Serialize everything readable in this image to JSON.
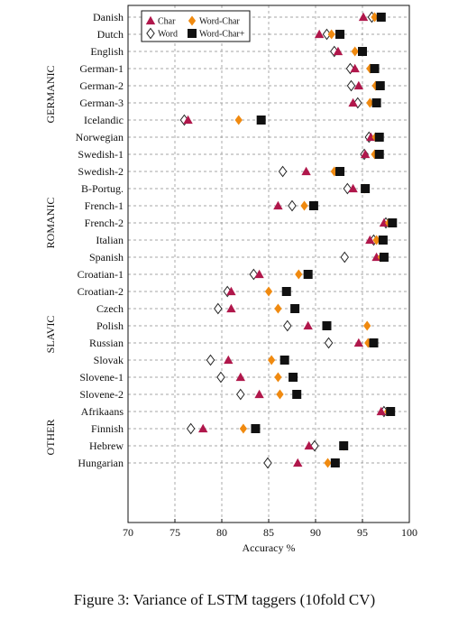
{
  "caption": "Figure 3: Variance of LSTM taggers (10fold CV)",
  "chart_data": {
    "type": "scatter",
    "orientation": "horizontal-categories",
    "xlabel": "Accuracy %",
    "xlim": [
      70,
      100
    ],
    "xticks": [
      70,
      75,
      80,
      85,
      90,
      95,
      100
    ],
    "grid": true,
    "legend_position": "top-left",
    "legend": [
      {
        "key": "char",
        "label": "Char",
        "marker": "triangle",
        "color": "#b0174b"
      },
      {
        "key": "word_char",
        "label": "Word-Char",
        "marker": "diamond",
        "color": "#f08a10"
      },
      {
        "key": "word",
        "label": "Word",
        "marker": "diamond-open",
        "color": "#222222"
      },
      {
        "key": "word_char_plus",
        "label": "Word-Char+",
        "marker": "square",
        "color": "#111111"
      }
    ],
    "groups": [
      {
        "name": "GERMANIC",
        "languages": [
          {
            "name": "Danish",
            "char": 95.1,
            "word_char": 96.3,
            "word": 96.0,
            "word_char_plus": 97.0
          },
          {
            "name": "Dutch",
            "char": 90.4,
            "word_char": 91.7,
            "word": 91.2,
            "word_char_plus": 92.6
          },
          {
            "name": "English",
            "char": 92.4,
            "word_char": 94.2,
            "word": 92.0,
            "word_char_plus": 95.0
          },
          {
            "name": "German-1",
            "char": 94.2,
            "word_char": 95.8,
            "word": 93.7,
            "word_char_plus": 96.3
          },
          {
            "name": "German-2",
            "char": 94.6,
            "word_char": 96.4,
            "word": 93.8,
            "word_char_plus": 96.9
          },
          {
            "name": "German-3",
            "char": 94.0,
            "word_char": 95.8,
            "word": 94.5,
            "word_char_plus": 96.5
          },
          {
            "name": "Icelandic",
            "char": 76.4,
            "word_char": 81.8,
            "word": 76.0,
            "word_char_plus": 84.2
          },
          {
            "name": "Norwegian",
            "char": 95.9,
            "word_char": 96.4,
            "word": 95.7,
            "word_char_plus": 96.8
          },
          {
            "name": "Swedish-1",
            "char": 95.3,
            "word_char": 96.3,
            "word": 95.2,
            "word_char_plus": 96.8
          },
          {
            "name": "Swedish-2",
            "char": 89.0,
            "word_char": 92.0,
            "word": 86.5,
            "word_char_plus": 92.6
          }
        ]
      },
      {
        "name": "ROMANIC",
        "languages": [
          {
            "name": "B-Portug.",
            "char": 94.0,
            "word_char": 95.2,
            "word": 93.4,
            "word_char_plus": 95.3
          },
          {
            "name": "French-1",
            "char": 86.0,
            "word_char": 88.8,
            "word": 87.5,
            "word_char_plus": 89.8
          },
          {
            "name": "French-2",
            "char": 97.3,
            "word_char": 97.8,
            "word": 97.5,
            "word_char_plus": 98.2
          },
          {
            "name": "Italian",
            "char": 95.8,
            "word_char": 96.5,
            "word": 96.2,
            "word_char_plus": 97.2
          },
          {
            "name": "Spanish",
            "char": 96.5,
            "word_char": 97.0,
            "word": 93.1,
            "word_char_plus": 97.3
          }
        ]
      },
      {
        "name": "SLAVIC",
        "languages": [
          {
            "name": "Croatian-1",
            "char": 84.0,
            "word_char": 88.2,
            "word": 83.4,
            "word_char_plus": 89.2
          },
          {
            "name": "Croatian-2",
            "char": 81.0,
            "word_char": 85.0,
            "word": 80.6,
            "word_char_plus": 86.9
          },
          {
            "name": "Czech",
            "char": 81.0,
            "word_char": 86.0,
            "word": 79.6,
            "word_char_plus": 87.8
          },
          {
            "name": "Polish",
            "char": 89.2,
            "word_char": 95.5,
            "word": 87.0,
            "word_char_plus": 91.2
          },
          {
            "name": "Russian",
            "char": 94.6,
            "word_char": 95.6,
            "word": 91.4,
            "word_char_plus": 96.2
          },
          {
            "name": "Slovak",
            "char": 80.7,
            "word_char": 85.3,
            "word": 78.8,
            "word_char_plus": 86.7
          },
          {
            "name": "Slovene-1",
            "char": 82.0,
            "word_char": 86.0,
            "word": 79.9,
            "word_char_plus": 87.6
          },
          {
            "name": "Slovene-2",
            "char": 84.0,
            "word_char": 86.2,
            "word": 82.0,
            "word_char_plus": 88.0
          }
        ]
      },
      {
        "name": "OTHER",
        "languages": [
          {
            "name": "Afrikaans",
            "char": 97.0,
            "word_char": 97.7,
            "word": 97.3,
            "word_char_plus": 98.0
          },
          {
            "name": "Finnish",
            "char": 78.0,
            "word_char": 82.3,
            "word": 76.7,
            "word_char_plus": 83.6
          },
          {
            "name": "Hebrew",
            "char": 89.3,
            "word_char": 93.0,
            "word": 89.9,
            "word_char_plus": 93.0
          },
          {
            "name": "Hungarian",
            "char": 88.1,
            "word_char": 91.3,
            "word": 84.9,
            "word_char_plus": 92.1
          }
        ]
      }
    ]
  }
}
